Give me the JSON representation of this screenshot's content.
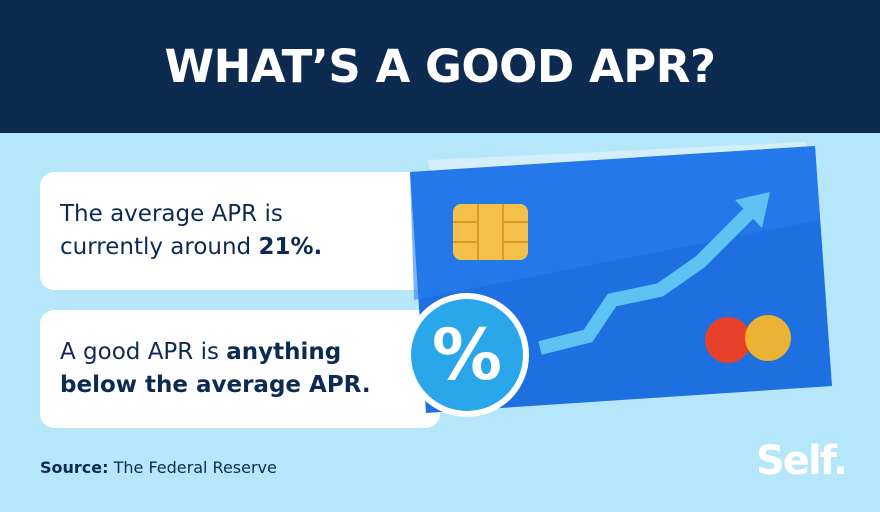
{
  "header": {
    "title": "WHAT’S A GOOD APR?"
  },
  "cards": [
    {
      "lines": [
        [
          {
            "text": "The average APR is",
            "bold": false
          }
        ],
        [
          {
            "text": "currently around ",
            "bold": false
          },
          {
            "text": "21%.",
            "bold": true
          }
        ]
      ]
    },
    {
      "lines": [
        [
          {
            "text": "A good APR is ",
            "bold": false
          },
          {
            "text": "anything",
            "bold": true
          }
        ],
        [
          {
            "text": "below the average APR.",
            "bold": true
          }
        ]
      ]
    }
  ],
  "badge": "%",
  "source": {
    "label": "Source:",
    "text": " The Federal Reserve"
  },
  "logo": "Self."
}
